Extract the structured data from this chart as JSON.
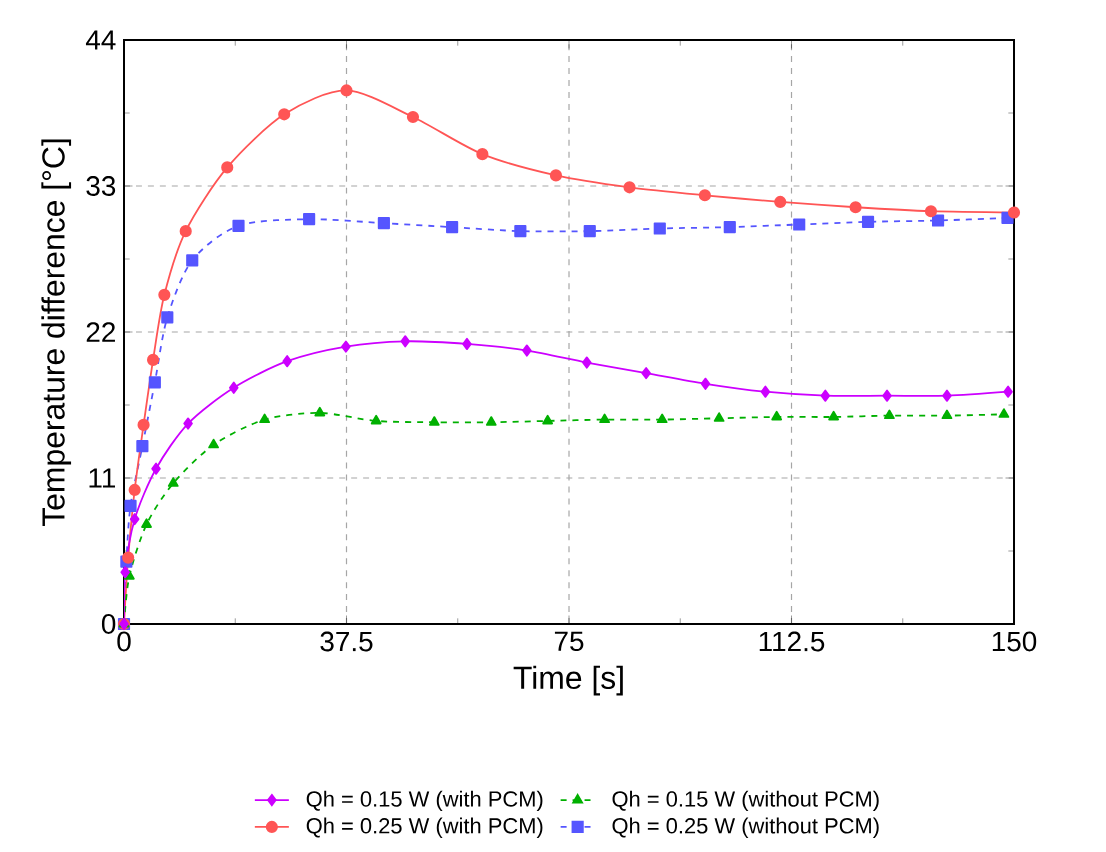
{
  "chart_data": {
    "type": "line",
    "xlabel": "Time [s]",
    "ylabel": "Temperature difference [°C]",
    "xlim": [
      0,
      150
    ],
    "ylim": [
      0,
      44
    ],
    "xticks": [
      0,
      37.5,
      75,
      112.5,
      150
    ],
    "yticks": [
      0,
      11,
      22,
      33,
      44
    ],
    "grid": true,
    "legend": "bottom",
    "series": [
      {
        "name": "Qh = 0.15 W (with PCM)",
        "color": "#cc00ff",
        "marker": "diamond",
        "line_style": "solid",
        "x": [
          0,
          0.2,
          1.8,
          5.4,
          10.8,
          18.5,
          27.5,
          37.4,
          47.4,
          57.8,
          67.9,
          78,
          88,
          98,
          108.1,
          118.2,
          128.6,
          138.7,
          149
        ],
        "values": [
          0,
          3.9,
          7.9,
          11.7,
          15.1,
          17.8,
          19.8,
          20.9,
          21.3,
          21.1,
          20.6,
          19.7,
          18.9,
          18.1,
          17.5,
          17.2,
          17.2,
          17.2,
          17.5
        ]
      },
      {
        "name": "Qh = 0.15 W (without PCM)",
        "color": "#00b000",
        "marker": "triangle",
        "line_style": "dashed",
        "x": [
          0,
          0.9,
          3.8,
          8.3,
          15.1,
          23.7,
          33,
          42.5,
          52.3,
          61.9,
          71.4,
          81,
          90.7,
          100.3,
          110,
          119.6,
          129,
          138.7,
          148.3
        ],
        "values": [
          0,
          3.6,
          7.5,
          10.6,
          13.5,
          15.4,
          15.9,
          15.3,
          15.2,
          15.2,
          15.3,
          15.4,
          15.4,
          15.5,
          15.6,
          15.6,
          15.7,
          15.7,
          15.8
        ]
      },
      {
        "name": "Qh = 0.25 W (with PCM)",
        "color": "#ff5555",
        "marker": "circle",
        "line_style": "solid",
        "x": [
          0,
          0.7,
          1.8,
          3.3,
          4.9,
          6.8,
          10.4,
          17.4,
          27,
          37.5,
          48.7,
          60.4,
          72.8,
          85.2,
          97.9,
          110.6,
          123.3,
          136,
          150
        ],
        "values": [
          0,
          5,
          10.1,
          15,
          19.9,
          24.8,
          29.6,
          34.4,
          38.4,
          40.2,
          38.2,
          35.4,
          33.8,
          32.9,
          32.3,
          31.8,
          31.4,
          31.1,
          31
        ]
      },
      {
        "name": "Qh = 0.25 W (without PCM)",
        "color": "#5555ff",
        "marker": "square",
        "line_style": "dashed",
        "x": [
          0,
          0.4,
          1.1,
          3.1,
          5.2,
          7.3,
          11.5,
          19.3,
          31.2,
          43.8,
          55.3,
          66.8,
          78.5,
          90.3,
          102.1,
          113.8,
          125.4,
          137.2,
          148.9
        ],
        "values": [
          0,
          4.7,
          8.9,
          13.4,
          18.2,
          23.1,
          27.4,
          30,
          30.5,
          30.2,
          29.9,
          29.6,
          29.6,
          29.8,
          29.9,
          30.1,
          30.3,
          30.4,
          30.6
        ]
      }
    ]
  }
}
